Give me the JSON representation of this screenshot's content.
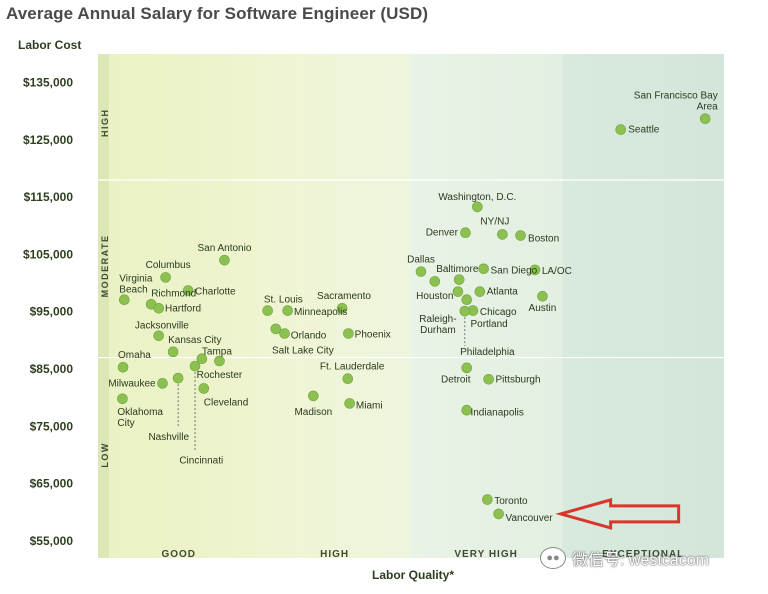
{
  "chart_data": {
    "type": "scatter",
    "title": "Average Annual Salary for Software Engineer (USD)",
    "ylabel": "Labor Cost",
    "xlabel": "Labor Quality*",
    "ylim": [
      52000,
      140000
    ],
    "xlim": [
      0,
      100
    ],
    "yticks": [
      {
        "label": "$135,000",
        "value": 135000
      },
      {
        "label": "$125,000",
        "value": 125000
      },
      {
        "label": "$115,000",
        "value": 115000
      },
      {
        "label": "$105,000",
        "value": 105000
      },
      {
        "label": "$95,000",
        "value": 95000
      },
      {
        "label": "$85,000",
        "value": 85000
      },
      {
        "label": "$75,000",
        "value": 75000
      },
      {
        "label": "$65,000",
        "value": 65000
      },
      {
        "label": "$55,000",
        "value": 55000
      }
    ],
    "y_bands": [
      {
        "label": "HIGH",
        "center": 128000
      },
      {
        "label": "MODERATE",
        "center": 103000
      },
      {
        "label": "LOW",
        "center": 70000
      }
    ],
    "y_band_boundaries": [
      118000,
      87000
    ],
    "x_bands": [
      {
        "label": "GOOD",
        "from": 0,
        "to": 25.8
      },
      {
        "label": "HIGH",
        "from": 25.8,
        "to": 49.8
      },
      {
        "label": "VERY HIGH",
        "from": 49.8,
        "to": 74.2
      },
      {
        "label": "EXCEPTIONAL",
        "from": 74.2,
        "to": 100
      }
    ],
    "points": [
      {
        "city": "San Francisco Bay Area",
        "label": "San Francisco Bay\nArea",
        "x": 97.0,
        "y": 128700,
        "lx": 0.5,
        "ly": 132900,
        "anchor": "end",
        "lxoff": 2
      },
      {
        "city": "Seattle",
        "x": 83.5,
        "y": 126800,
        "anchor": "start",
        "lxoff": 1.2,
        "ly": 127000
      },
      {
        "city": "Washington, D.C.",
        "x": 60.6,
        "y": 113300,
        "anchor": "middle",
        "lxoff": 0,
        "ly": 115200
      },
      {
        "city": "Denver",
        "x": 58.7,
        "y": 108800,
        "anchor": "end",
        "lxoff": -1.2,
        "ly": 109000
      },
      {
        "city": "NY/NJ",
        "x": 64.6,
        "y": 108500,
        "anchor": "middle",
        "lxoff": -1.2,
        "ly": 110900
      },
      {
        "city": "Boston",
        "x": 67.5,
        "y": 108300,
        "anchor": "start",
        "lxoff": 1.2,
        "ly": 108000
      },
      {
        "city": "Dallas",
        "x": 51.6,
        "y": 102000,
        "anchor": "middle",
        "lxoff": 0,
        "ly": 104300
      },
      {
        "city": "Baltimore",
        "x": 57.7,
        "y": 100600,
        "anchor": "middle",
        "lxoff": -0.3,
        "ly": 102600
      },
      {
        "city": "San Diego",
        "x": 61.6,
        "y": 102500,
        "anchor": "start",
        "lxoff": 1.1,
        "ly": 102400
      },
      {
        "city": "LA/OC",
        "x": 69.8,
        "y": 102300,
        "anchor": "start",
        "lxoff": 1.1,
        "ly": 102300
      },
      {
        "city": "Houston",
        "x": 53.8,
        "y": 100300,
        "anchor": "middle",
        "lxoff": 0,
        "ly": 97900
      },
      {
        "city": "Atlanta",
        "x": 61.0,
        "y": 98500,
        "anchor": "start",
        "lxoff": 1.1,
        "ly": 98700
      },
      {
        "city": "Austin",
        "x": 71.0,
        "y": 97700,
        "anchor": "middle",
        "lxoff": 0,
        "ly": 95800
      },
      {
        "city": "Raleigh-Durham",
        "label": "Raleigh-\nDurham",
        "x": 57.5,
        "y": 98500,
        "anchor": "middle",
        "lxoff": -3.2,
        "ly": 93900
      },
      {
        "city": "Portland",
        "x": 58.9,
        "y": 97100,
        "anchor": "start",
        "lxoff": 0.6,
        "ly": 93000
      },
      {
        "city": "Chicago",
        "x": 59.9,
        "y": 95200,
        "anchor": "start",
        "lxoff": 1.1,
        "ly": 95100
      },
      {
        "city": "Philadelphia",
        "x": 58.6,
        "y": 95100,
        "anchor": "middle",
        "lxoff": 3.6,
        "ly": 88100,
        "leader": true,
        "leader_to": 89000
      },
      {
        "city": "Detroit",
        "x": 58.9,
        "y": 85200,
        "anchor": "end",
        "lxoff": 0.6,
        "ly": 83300
      },
      {
        "city": "Pittsburgh",
        "x": 62.4,
        "y": 83200,
        "anchor": "start",
        "lxoff": 1.1,
        "ly": 83300
      },
      {
        "city": "Indianapolis",
        "x": 58.9,
        "y": 77800,
        "anchor": "start",
        "lxoff": 0.6,
        "ly": 77600
      },
      {
        "city": "Toronto",
        "x": 62.2,
        "y": 62200,
        "anchor": "start",
        "lxoff": 1.1,
        "ly": 62100
      },
      {
        "city": "Vancouver",
        "x": 64.0,
        "y": 59700,
        "anchor": "start",
        "lxoff": 1.1,
        "ly": 59200
      },
      {
        "city": "San Antonio",
        "x": 20.2,
        "y": 104000,
        "anchor": "middle",
        "lxoff": 0,
        "ly": 106300
      },
      {
        "city": "Columbus",
        "x": 10.8,
        "y": 101000,
        "anchor": "middle",
        "lxoff": 0.4,
        "ly": 103300
      },
      {
        "city": "Charlotte",
        "x": 14.4,
        "y": 98700,
        "anchor": "start",
        "lxoff": 1.1,
        "ly": 98700
      },
      {
        "city": "Virginia Beach",
        "label": "Virginia\nBeach",
        "x": 4.2,
        "y": 97100,
        "anchor": "start",
        "lxoff": -0.8,
        "ly": 101000
      },
      {
        "city": "Richmond",
        "x": 8.5,
        "y": 96300,
        "anchor": "start",
        "lxoff": 0,
        "ly": 98400
      },
      {
        "city": "Hartford",
        "x": 9.7,
        "y": 95600,
        "anchor": "start",
        "lxoff": 1.0,
        "ly": 95700
      },
      {
        "city": "Jacksonville",
        "x": 9.7,
        "y": 90800,
        "anchor": "start",
        "lxoff": -3.8,
        "ly": 92800
      },
      {
        "city": "Kansas City",
        "x": 12.0,
        "y": 88000,
        "anchor": "start",
        "lxoff": -0.8,
        "ly": 90200
      },
      {
        "city": "Tampa",
        "x": 16.6,
        "y": 86800,
        "anchor": "start",
        "lxoff": 0,
        "ly": 88200
      },
      {
        "city": "Omaha",
        "x": 4.0,
        "y": 85300,
        "anchor": "start",
        "lxoff": -0.8,
        "ly": 87600
      },
      {
        "city": "Rochester",
        "x": 19.4,
        "y": 86400,
        "anchor": "middle",
        "lxoff": 0,
        "ly": 84100
      },
      {
        "city": "Milwaukee",
        "x": 10.3,
        "y": 82500,
        "anchor": "end",
        "lxoff": -1.1,
        "ly": 82600
      },
      {
        "city": "Nashville",
        "x": 12.8,
        "y": 83400,
        "anchor": "middle",
        "lxoff": -1.5,
        "ly": 73300,
        "leader": true,
        "leader_to": 74800
      },
      {
        "city": "Cincinnati",
        "x": 15.5,
        "y": 85500,
        "anchor": "middle",
        "lxoff": 1.0,
        "ly": 69200,
        "leader": true,
        "leader_to": 70800
      },
      {
        "city": "Cleveland",
        "x": 16.9,
        "y": 81600,
        "anchor": "start",
        "lxoff": 0,
        "ly": 79300
      },
      {
        "city": "Oklahoma City",
        "label": "Oklahoma\nCity",
        "x": 3.9,
        "y": 79800,
        "anchor": "start",
        "lxoff": -0.8,
        "ly": 77700
      },
      {
        "city": "St. Louis",
        "x": 27.1,
        "y": 95200,
        "anchor": "start",
        "lxoff": -0.6,
        "ly": 97300
      },
      {
        "city": "Minneapolis",
        "x": 30.3,
        "y": 95200,
        "anchor": "start",
        "lxoff": 1.0,
        "ly": 95100
      },
      {
        "city": "Salt Lake City",
        "x": 28.4,
        "y": 92000,
        "anchor": "start",
        "lxoff": -0.6,
        "ly": 88400
      },
      {
        "city": "Orlando",
        "x": 29.8,
        "y": 91200,
        "anchor": "start",
        "lxoff": 1.0,
        "ly": 91000
      },
      {
        "city": "Sacramento",
        "x": 39.0,
        "y": 95600,
        "anchor": "middle",
        "lxoff": 0.3,
        "ly": 97900
      },
      {
        "city": "Phoenix",
        "x": 40.0,
        "y": 91200,
        "anchor": "start",
        "lxoff": 1.0,
        "ly": 91200
      },
      {
        "city": "Ft. Lauderdale",
        "x": 39.9,
        "y": 83300,
        "anchor": "middle",
        "lxoff": 0.7,
        "ly": 85600
      },
      {
        "city": "Madison",
        "x": 34.4,
        "y": 80300,
        "anchor": "middle",
        "lxoff": 0,
        "ly": 77700
      },
      {
        "city": "Miami",
        "x": 40.2,
        "y": 79000,
        "anchor": "start",
        "lxoff": 1.0,
        "ly": 78800
      }
    ],
    "annotation": {
      "type": "arrow",
      "points_to": "Vancouver",
      "color": "#d9362b"
    }
  },
  "watermark": {
    "text": "微信号: westcacom",
    "icon": "wechat-icon"
  }
}
